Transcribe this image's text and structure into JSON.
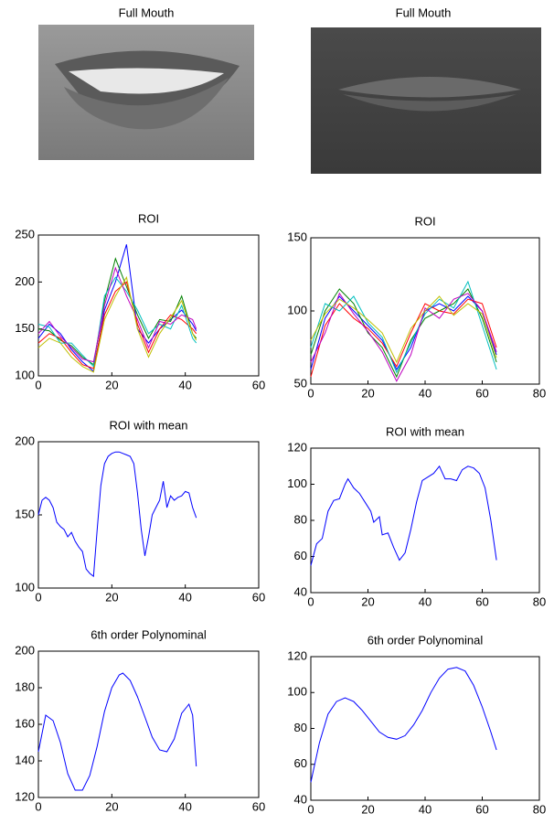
{
  "images": [
    {
      "title": "Full Mouth"
    },
    {
      "title": "Full Mouth"
    }
  ],
  "chart_data": [
    {
      "type": "line",
      "title": "ROI",
      "x": [
        0,
        3,
        6,
        9,
        12,
        15,
        18,
        21,
        24,
        27,
        30,
        33,
        36,
        39,
        42,
        43
      ],
      "series": [
        {
          "color": "#0000ff",
          "values": [
            140,
            155,
            145,
            128,
            115,
            105,
            170,
            200,
            240,
            150,
            135,
            150,
            160,
            170,
            155,
            148
          ]
        },
        {
          "color": "#008000",
          "values": [
            150,
            148,
            138,
            132,
            120,
            112,
            180,
            225,
            195,
            165,
            140,
            160,
            158,
            185,
            145,
            140
          ]
        },
        {
          "color": "#ff0000",
          "values": [
            135,
            145,
            140,
            125,
            112,
            108,
            165,
            190,
            200,
            155,
            125,
            150,
            165,
            160,
            150,
            145
          ]
        },
        {
          "color": "#00bfbf",
          "values": [
            155,
            152,
            135,
            135,
            122,
            110,
            185,
            205,
            190,
            170,
            145,
            155,
            150,
            175,
            140,
            135
          ]
        },
        {
          "color": "#bf00bf",
          "values": [
            145,
            158,
            142,
            130,
            118,
            115,
            175,
            215,
            185,
            160,
            130,
            158,
            155,
            165,
            160,
            150
          ]
        },
        {
          "color": "#bfbf00",
          "values": [
            130,
            140,
            135,
            120,
            110,
            104,
            160,
            185,
            205,
            150,
            120,
            145,
            162,
            180,
            145,
            138
          ]
        }
      ],
      "xlim": [
        0,
        60
      ],
      "ylim": [
        100,
        250
      ],
      "xticks": [
        0,
        20,
        40,
        60
      ],
      "yticks": [
        100,
        150,
        200,
        250
      ]
    },
    {
      "type": "line",
      "title": "ROI",
      "x": [
        0,
        5,
        10,
        15,
        20,
        25,
        30,
        35,
        40,
        45,
        50,
        55,
        60,
        65
      ],
      "series": [
        {
          "color": "#0000ff",
          "values": [
            60,
            95,
            110,
            100,
            90,
            80,
            60,
            75,
            100,
            105,
            100,
            110,
            100,
            70
          ]
        },
        {
          "color": "#008000",
          "values": [
            70,
            100,
            115,
            105,
            85,
            75,
            55,
            80,
            95,
            100,
            105,
            115,
            95,
            65
          ]
        },
        {
          "color": "#ff0000",
          "values": [
            55,
            90,
            105,
            95,
            88,
            78,
            62,
            85,
            105,
            100,
            98,
            108,
            105,
            75
          ]
        },
        {
          "color": "#00bfbf",
          "values": [
            75,
            105,
            100,
            110,
            92,
            82,
            58,
            78,
            98,
            108,
            102,
            120,
            90,
            60
          ]
        },
        {
          "color": "#bf00bf",
          "values": [
            65,
            85,
            112,
            98,
            86,
            72,
            52,
            70,
            102,
            95,
            108,
            112,
            100,
            72
          ]
        },
        {
          "color": "#bfbf00",
          "values": [
            80,
            98,
            108,
            102,
            94,
            85,
            65,
            88,
            100,
            110,
            97,
            105,
            98,
            68
          ]
        }
      ],
      "xlim": [
        0,
        80
      ],
      "ylim": [
        50,
        150
      ],
      "xticks": [
        0,
        20,
        40,
        60,
        80
      ],
      "yticks": [
        50,
        100,
        150
      ]
    },
    {
      "type": "line",
      "title": "ROI with mean",
      "color": "#0000ff",
      "x": [
        0,
        1,
        2,
        3,
        4,
        5,
        6,
        7,
        8,
        9,
        10,
        11,
        12,
        13,
        14,
        15,
        16,
        17,
        18,
        19,
        20,
        21,
        22,
        23,
        24,
        25,
        26,
        27,
        28,
        29,
        30,
        31,
        32,
        33,
        34,
        35,
        36,
        37,
        38,
        39,
        40,
        41,
        42,
        43
      ],
      "values": [
        150,
        160,
        162,
        160,
        155,
        145,
        142,
        140,
        135,
        138,
        132,
        128,
        125,
        113,
        110,
        108,
        140,
        170,
        185,
        190,
        192,
        193,
        193,
        192,
        191,
        190,
        185,
        165,
        140,
        122,
        135,
        150,
        155,
        160,
        173,
        155,
        163,
        160,
        162,
        163,
        166,
        165,
        155,
        148
      ],
      "xlim": [
        0,
        60
      ],
      "ylim": [
        100,
        200
      ],
      "xticks": [
        0,
        20,
        40,
        60
      ],
      "yticks": [
        100,
        150,
        200
      ]
    },
    {
      "type": "line",
      "title": "ROI with mean",
      "color": "#0000ff",
      "x": [
        0,
        2,
        4,
        6,
        8,
        10,
        12,
        13,
        15,
        17,
        19,
        21,
        22,
        24,
        25,
        27,
        29,
        31,
        33,
        35,
        37,
        39,
        41,
        43,
        45,
        47,
        49,
        51,
        53,
        55,
        57,
        59,
        61,
        63,
        65
      ],
      "values": [
        55,
        67,
        70,
        85,
        91,
        92,
        100,
        103,
        98,
        95,
        90,
        85,
        79,
        82,
        72,
        73,
        65,
        58,
        62,
        75,
        90,
        102,
        104,
        106,
        110,
        103,
        103,
        102,
        108,
        110,
        109,
        106,
        98,
        80,
        58
      ],
      "xlim": [
        0,
        80
      ],
      "ylim": [
        40,
        120
      ],
      "xticks": [
        0,
        20,
        40,
        60,
        80
      ],
      "yticks": [
        40,
        60,
        80,
        100,
        120
      ]
    },
    {
      "type": "line",
      "title": "6th order Polynominal",
      "color": "#0000ff",
      "x": [
        0,
        2,
        4,
        6,
        8,
        10,
        12,
        14,
        16,
        18,
        20,
        22,
        23,
        25,
        27,
        29,
        31,
        33,
        35,
        37,
        39,
        41,
        42,
        43
      ],
      "values": [
        145,
        165,
        162,
        150,
        133,
        124,
        124,
        132,
        148,
        167,
        180,
        187,
        188,
        184,
        175,
        164,
        153,
        146,
        145,
        152,
        166,
        171,
        165,
        137
      ],
      "xlim": [
        0,
        60
      ],
      "ylim": [
        120,
        200
      ],
      "xticks": [
        0,
        20,
        40,
        60
      ],
      "yticks": [
        120,
        140,
        160,
        180,
        200
      ]
    },
    {
      "type": "line",
      "title": "6th order Polynominal",
      "color": "#0000ff",
      "x": [
        0,
        3,
        6,
        9,
        12,
        15,
        18,
        21,
        24,
        27,
        30,
        33,
        36,
        39,
        42,
        45,
        48,
        51,
        54,
        57,
        60,
        63,
        65
      ],
      "values": [
        50,
        72,
        88,
        95,
        97,
        95,
        90,
        84,
        78,
        75,
        74,
        76,
        82,
        90,
        100,
        108,
        113,
        114,
        112,
        104,
        92,
        78,
        68
      ],
      "xlim": [
        0,
        80
      ],
      "ylim": [
        40,
        120
      ],
      "xticks": [
        0,
        20,
        40,
        60,
        80
      ],
      "yticks": [
        40,
        60,
        80,
        100,
        120
      ]
    }
  ]
}
